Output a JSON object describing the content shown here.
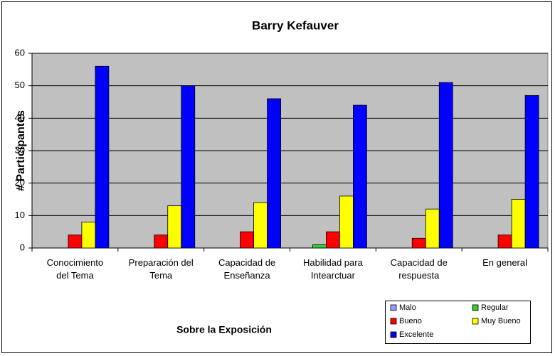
{
  "chart_data": {
    "type": "bar",
    "title": "Barry Kefauver",
    "x_label": "Sobre la Exposición",
    "y_label": "# Participantes",
    "categories": [
      "Conocimiento\ndel Tema",
      "Preparación del\nTema",
      "Capacidad de\nEnseñanza",
      "Habilidad para\nIntearctuar",
      "Capacidad de\nrespuesta",
      "En general"
    ],
    "series": [
      {
        "name": "Malo",
        "color": "#9999ff",
        "values": [
          0,
          0,
          0,
          0,
          0,
          0
        ]
      },
      {
        "name": "Regular",
        "color": "#33cc33",
        "values": [
          0,
          0,
          0,
          1,
          0,
          0
        ]
      },
      {
        "name": "Bueno",
        "color": "#ff0000",
        "values": [
          4,
          4,
          5,
          5,
          3,
          4
        ]
      },
      {
        "name": "Muy Bueno",
        "color": "#ffff00",
        "values": [
          8,
          13,
          14,
          16,
          12,
          15
        ]
      },
      {
        "name": "Excelente",
        "color": "#0000ff",
        "values": [
          56,
          50,
          46,
          44,
          51,
          47
        ]
      }
    ],
    "ylim": [
      0,
      60
    ],
    "yticks": [
      0,
      10,
      20,
      30,
      40,
      50,
      60
    ],
    "grid": true,
    "legend": "lower right"
  }
}
